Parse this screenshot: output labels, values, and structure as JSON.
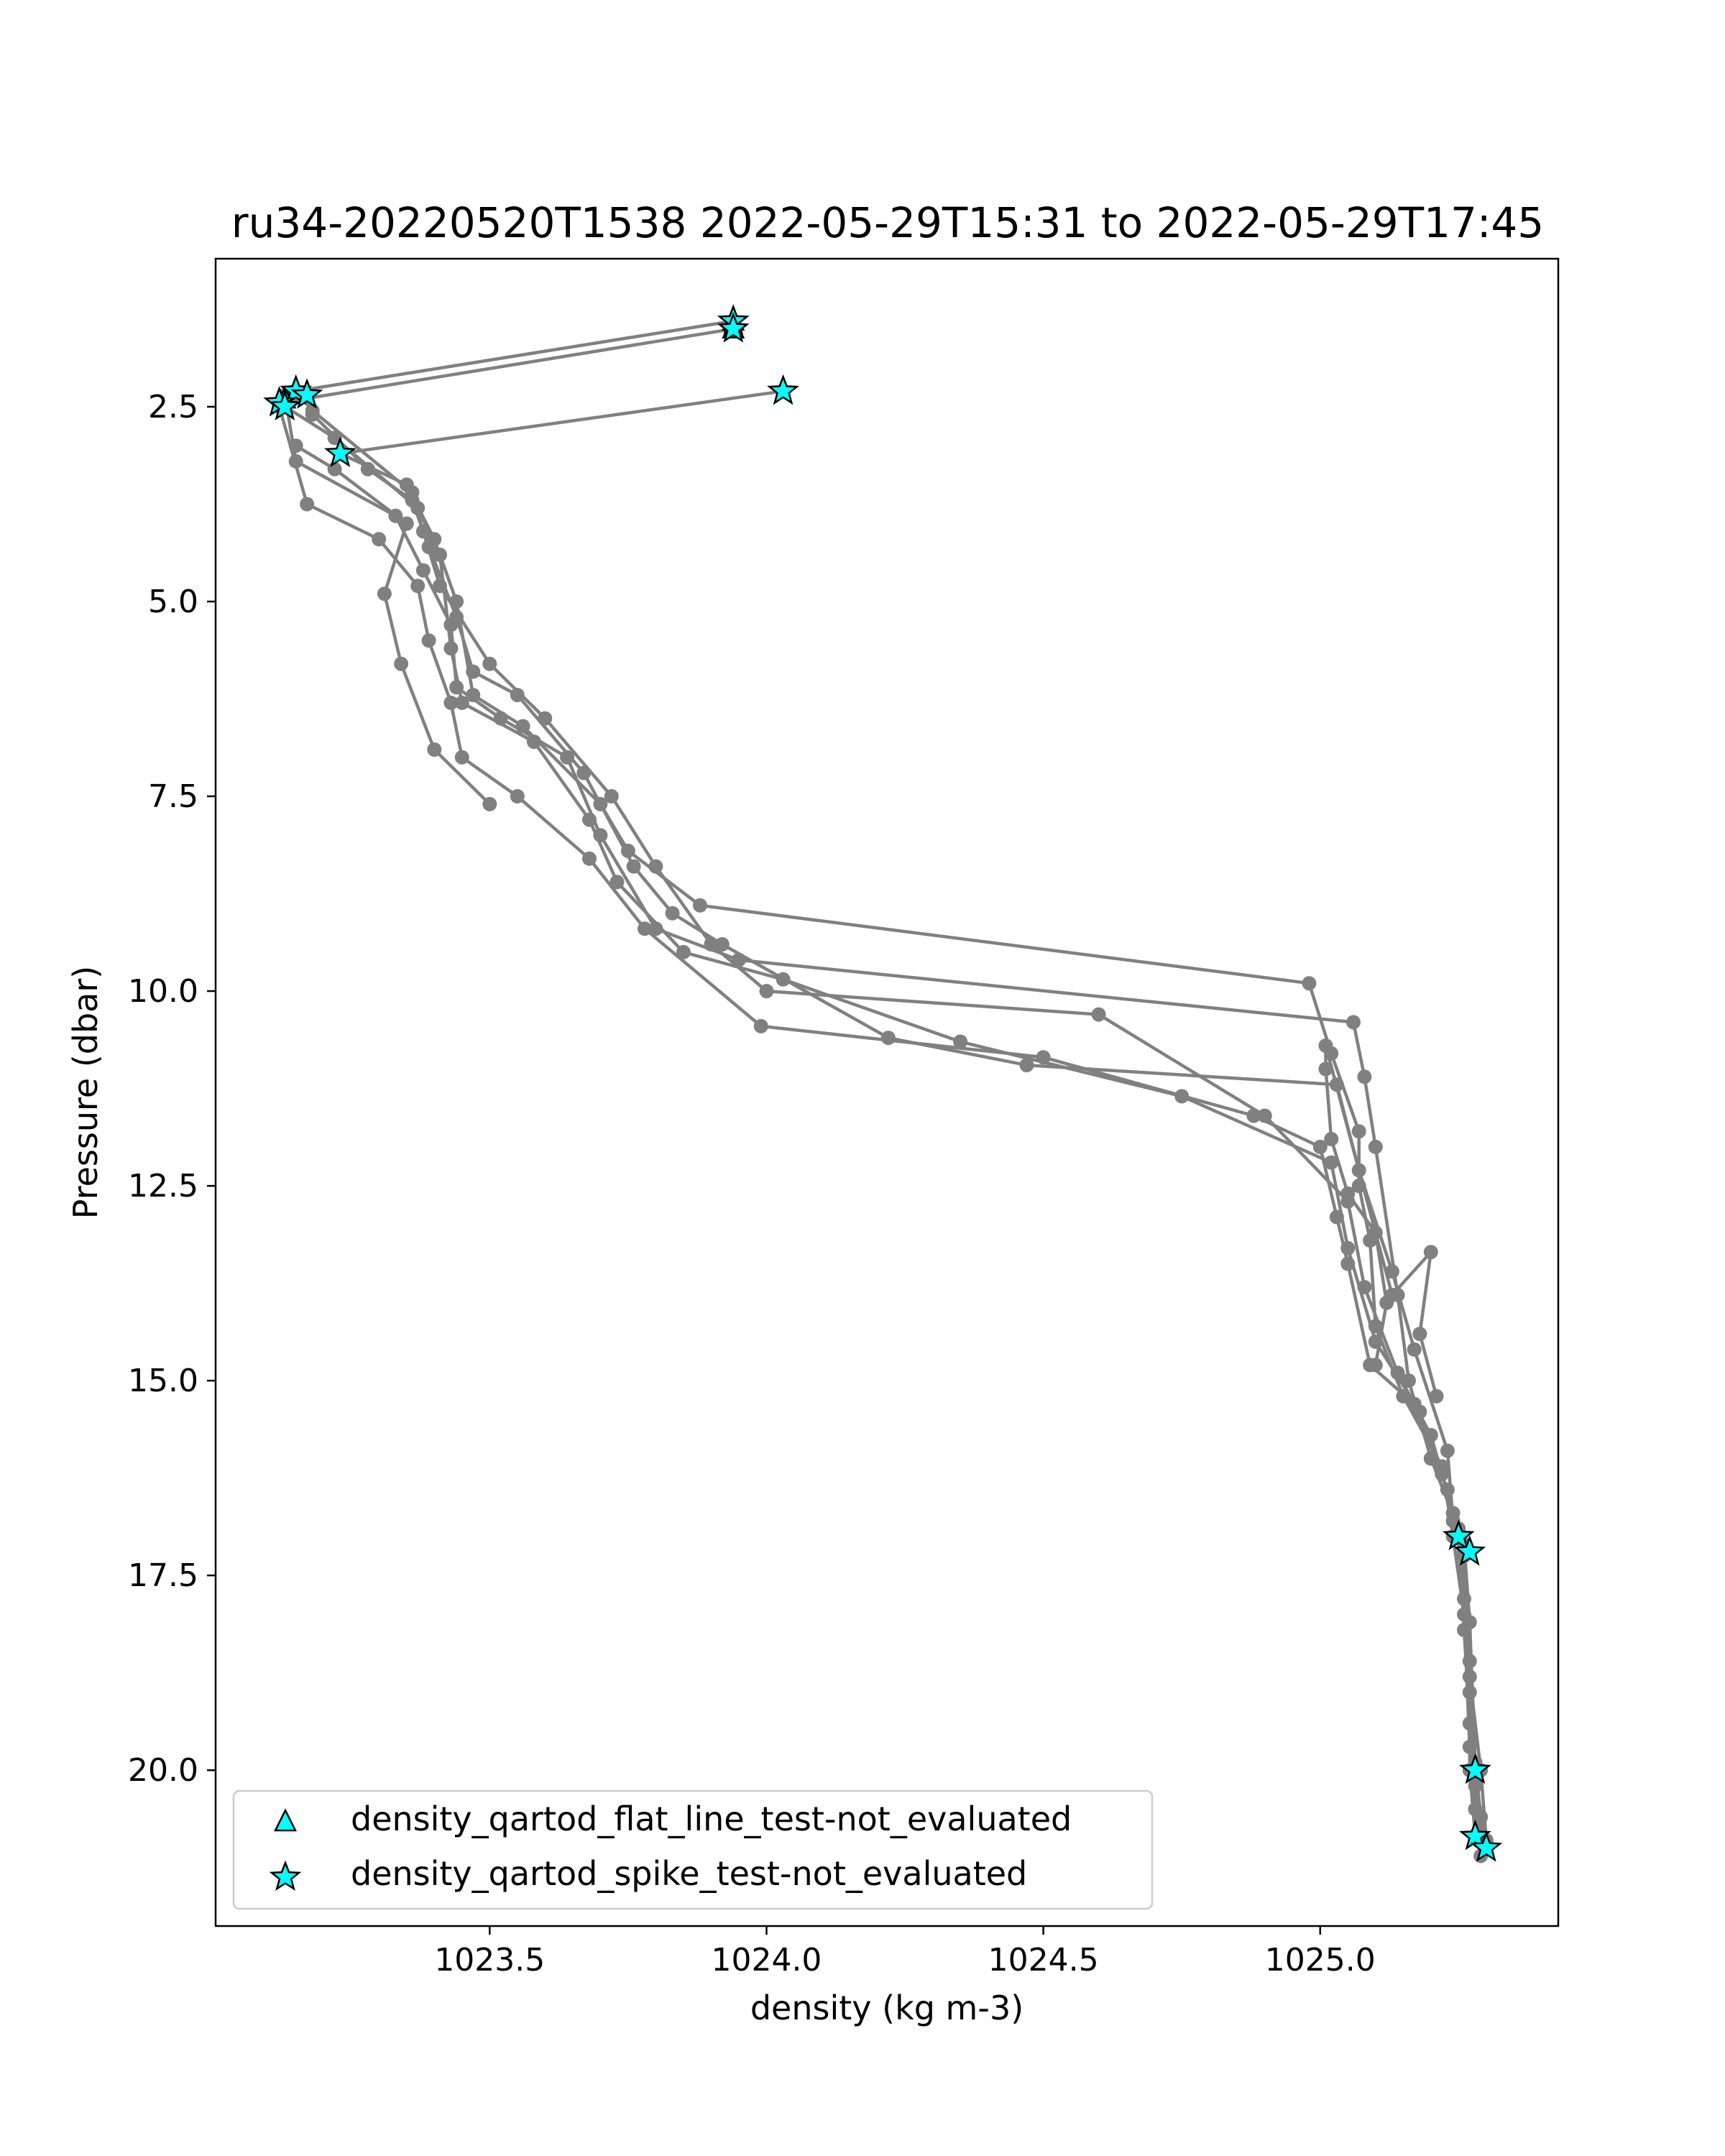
{
  "chart_data": {
    "type": "line",
    "title": "ru34-20220520T1538 2022-05-29T15:31 to 2022-05-29T17:45",
    "xlabel": "density (kg m-3)",
    "ylabel": "Pressure (dbar)",
    "xlim": [
      1023.005,
      1025.43
    ],
    "ylim": [
      22.0,
      0.6
    ],
    "y_inverted": true,
    "grid": false,
    "line_color": "#808080",
    "marker_color": "#00ffff",
    "xticks": [
      1023.5,
      1024.0,
      1024.5,
      1025.0
    ],
    "xtick_labels": [
      "1023.5",
      "1024.0",
      "1024.5",
      "1025.0"
    ],
    "yticks": [
      2.5,
      5.0,
      7.5,
      10.0,
      12.5,
      15.0,
      17.5,
      20.0
    ],
    "ytick_labels": [
      "2.5",
      "5.0",
      "7.5",
      "10.0",
      "12.5",
      "15.0",
      "17.5",
      "20.0"
    ],
    "legend_position": "lower-left",
    "legend": [
      {
        "label": "density_qartod_flat_line_test-not_evaluated",
        "marker": "triangle",
        "color": "#00ffff"
      },
      {
        "label": "density_qartod_spike_test-not_evaluated",
        "marker": "star",
        "color": "#00ffff"
      }
    ],
    "series": [
      {
        "values": [
          [
            1023.94,
            1.4
          ],
          [
            1023.15,
            2.3
          ],
          [
            1023.18,
            2.55
          ],
          [
            1023.36,
            3.6
          ],
          [
            1023.38,
            4.1
          ],
          [
            1023.41,
            4.8
          ],
          [
            1023.5,
            5.8
          ],
          [
            1023.6,
            6.5
          ],
          [
            1023.72,
            7.5
          ],
          [
            1023.8,
            8.4
          ],
          [
            1023.9,
            9.4
          ],
          [
            1024.0,
            10.0
          ],
          [
            1024.6,
            10.3
          ],
          [
            1024.9,
            11.6
          ],
          [
            1025.05,
            12.7
          ],
          [
            1025.08,
            13.8
          ],
          [
            1025.14,
            14.9
          ],
          [
            1025.2,
            15.7
          ],
          [
            1025.24,
            16.7
          ],
          [
            1025.25,
            17.0
          ],
          [
            1025.26,
            18.2
          ],
          [
            1025.27,
            19.4
          ],
          [
            1025.28,
            20.2
          ],
          [
            1025.3,
            21.0
          ]
        ]
      },
      {
        "values": [
          [
            1023.94,
            1.5
          ],
          [
            1023.12,
            2.45
          ],
          [
            1023.22,
            2.9
          ],
          [
            1023.37,
            3.8
          ],
          [
            1023.41,
            4.4
          ],
          [
            1023.43,
            5.6
          ],
          [
            1023.45,
            6.3
          ],
          [
            1023.58,
            6.8
          ],
          [
            1023.68,
            7.8
          ],
          [
            1023.73,
            8.6
          ],
          [
            1023.85,
            9.5
          ],
          [
            1024.03,
            9.85
          ],
          [
            1024.35,
            10.65
          ],
          [
            1024.75,
            11.35
          ],
          [
            1025.02,
            12.2
          ],
          [
            1025.05,
            13.3
          ],
          [
            1025.1,
            14.5
          ],
          [
            1025.18,
            15.4
          ],
          [
            1025.22,
            16.2
          ],
          [
            1025.26,
            17.2
          ],
          [
            1025.27,
            18.6
          ],
          [
            1025.27,
            20.0
          ],
          [
            1025.28,
            20.85
          ]
        ]
      },
      {
        "values": [
          [
            1024.03,
            2.3
          ],
          [
            1023.23,
            3.1
          ],
          [
            1023.35,
            3.5
          ],
          [
            1023.4,
            4.2
          ],
          [
            1023.44,
            5.0
          ],
          [
            1023.47,
            6.2
          ],
          [
            1023.56,
            6.6
          ],
          [
            1023.7,
            7.6
          ],
          [
            1023.75,
            8.2
          ],
          [
            1023.88,
            8.9
          ],
          [
            1024.98,
            9.9
          ],
          [
            1025.02,
            10.8
          ],
          [
            1025.07,
            11.8
          ],
          [
            1025.07,
            12.5
          ],
          [
            1025.09,
            13.2
          ],
          [
            1025.1,
            14.3
          ],
          [
            1025.15,
            15.2
          ],
          [
            1025.22,
            16.1
          ],
          [
            1025.24,
            17.0
          ],
          [
            1025.26,
            18.0
          ],
          [
            1025.27,
            19.7
          ],
          [
            1025.28,
            20.5
          ],
          [
            1025.3,
            21.0
          ]
        ]
      },
      {
        "values": [
          [
            1023.13,
            2.35
          ],
          [
            1023.15,
            3.2
          ],
          [
            1023.33,
            3.9
          ],
          [
            1023.38,
            4.6
          ],
          [
            1023.43,
            5.3
          ],
          [
            1023.44,
            6.1
          ],
          [
            1023.52,
            6.5
          ],
          [
            1023.64,
            7.0
          ],
          [
            1023.7,
            8.0
          ],
          [
            1023.8,
            9.2
          ],
          [
            1023.95,
            9.6
          ],
          [
            1025.06,
            10.4
          ],
          [
            1025.08,
            11.1
          ],
          [
            1025.1,
            12.0
          ],
          [
            1025.14,
            13.9
          ],
          [
            1025.16,
            15.0
          ],
          [
            1025.2,
            16.0
          ],
          [
            1025.25,
            16.9
          ],
          [
            1025.26,
            17.8
          ],
          [
            1025.27,
            19.0
          ],
          [
            1025.28,
            20.1
          ],
          [
            1025.29,
            21.1
          ]
        ]
      },
      {
        "values": [
          [
            1023.18,
            2.6
          ],
          [
            1023.28,
            3.3
          ],
          [
            1023.36,
            3.7
          ],
          [
            1023.39,
            4.3
          ],
          [
            1023.44,
            5.2
          ],
          [
            1023.47,
            5.9
          ],
          [
            1023.55,
            6.2
          ],
          [
            1023.67,
            7.2
          ],
          [
            1023.76,
            8.4
          ],
          [
            1023.83,
            9.0
          ],
          [
            1023.92,
            9.4
          ],
          [
            1024.22,
            10.6
          ],
          [
            1024.47,
            10.95
          ],
          [
            1025.03,
            11.2
          ],
          [
            1025.07,
            12.3
          ],
          [
            1025.13,
            13.6
          ],
          [
            1025.17,
            14.6
          ],
          [
            1025.23,
            15.9
          ],
          [
            1025.24,
            16.8
          ],
          [
            1025.26,
            17.1
          ],
          [
            1025.27,
            18.1
          ],
          [
            1025.28,
            19.9
          ],
          [
            1025.29,
            20.6
          ],
          [
            1025.3,
            20.9
          ]
        ]
      },
      {
        "values": [
          [
            1023.12,
            2.5
          ],
          [
            1023.17,
            3.75
          ],
          [
            1023.3,
            4.2
          ],
          [
            1023.37,
            4.8
          ],
          [
            1023.39,
            5.5
          ],
          [
            1023.43,
            6.3
          ],
          [
            1023.45,
            7.0
          ],
          [
            1023.55,
            7.5
          ],
          [
            1023.68,
            8.3
          ],
          [
            1023.78,
            9.2
          ],
          [
            1023.99,
            10.45
          ],
          [
            1024.5,
            10.85
          ],
          [
            1024.88,
            11.6
          ],
          [
            1025.0,
            12.0
          ],
          [
            1025.03,
            12.9
          ],
          [
            1025.05,
            13.5
          ],
          [
            1025.09,
            14.8
          ],
          [
            1025.17,
            15.3
          ],
          [
            1025.23,
            16.4
          ],
          [
            1025.26,
            17.25
          ],
          [
            1025.27,
            18.8
          ],
          [
            1025.29,
            20.0
          ],
          [
            1025.3,
            20.9
          ]
        ]
      },
      {
        "values": [
          [
            1023.5,
            7.6
          ],
          [
            1023.4,
            6.9
          ],
          [
            1023.34,
            5.8
          ],
          [
            1023.31,
            4.9
          ],
          [
            1023.35,
            4.0
          ],
          [
            1023.22,
            3.3
          ],
          [
            1023.15,
            3.0
          ]
        ]
      },
      {
        "values": [
          [
            1025.1,
            14.8
          ],
          [
            1025.12,
            14.0
          ],
          [
            1025.1,
            13.1
          ],
          [
            1025.05,
            12.6
          ],
          [
            1025.02,
            11.9
          ],
          [
            1025.01,
            11.0
          ],
          [
            1025.01,
            10.7
          ],
          [
            1025.13,
            13.9
          ],
          [
            1025.2,
            13.35
          ],
          [
            1025.18,
            14.4
          ],
          [
            1025.21,
            15.2
          ]
        ]
      }
    ],
    "flat_line_flags": [
      [
        1023.94,
        1.4
      ],
      [
        1023.94,
        1.5
      ],
      [
        1023.13,
        2.4
      ]
    ],
    "spike_flags": [
      [
        1023.94,
        1.4
      ],
      [
        1023.94,
        1.5
      ],
      [
        1024.03,
        2.3
      ],
      [
        1023.15,
        2.3
      ],
      [
        1023.17,
        2.35
      ],
      [
        1023.12,
        2.45
      ],
      [
        1023.13,
        2.5
      ],
      [
        1023.23,
        3.1
      ],
      [
        1025.25,
        17.0
      ],
      [
        1025.27,
        17.2
      ],
      [
        1025.28,
        20.0
      ],
      [
        1025.28,
        20.85
      ],
      [
        1025.3,
        21.0
      ]
    ]
  }
}
